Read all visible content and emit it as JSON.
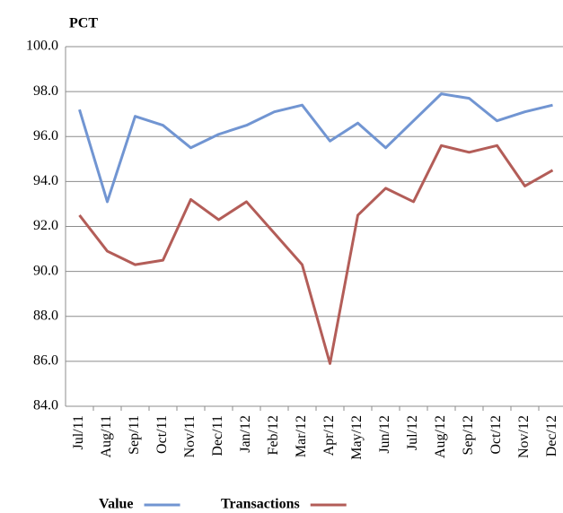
{
  "chart_data": {
    "type": "line",
    "title": "PCT",
    "categories": [
      "Jul/11",
      "Aug/11",
      "Sep/11",
      "Oct/11",
      "Nov/11",
      "Dec/11",
      "Jan/12",
      "Feb/12",
      "Mar/12",
      "Apr/12",
      "May/12",
      "Jun/12",
      "Jul/12",
      "Aug/12",
      "Sep/12",
      "Oct/12",
      "Nov/12",
      "Dec/12"
    ],
    "series": [
      {
        "name": "Value",
        "color": "#7195d2",
        "values": [
          97.2,
          93.1,
          96.9,
          96.5,
          95.5,
          96.1,
          96.5,
          97.1,
          97.4,
          95.8,
          96.6,
          95.5,
          96.7,
          97.9,
          97.7,
          96.7,
          97.1,
          97.4
        ]
      },
      {
        "name": "Transactions",
        "color": "#b35d58",
        "values": [
          92.5,
          90.9,
          90.3,
          90.5,
          93.2,
          92.3,
          93.1,
          91.7,
          90.3,
          85.9,
          92.5,
          93.7,
          93.1,
          95.6,
          95.3,
          95.6,
          93.8,
          94.5
        ]
      }
    ],
    "ylim": [
      84,
      100
    ],
    "yticks": [
      {
        "value": 84,
        "label": "84.0"
      },
      {
        "value": 86,
        "label": "86.0"
      },
      {
        "value": 88,
        "label": "88.0"
      },
      {
        "value": 90,
        "label": "90.0"
      },
      {
        "value": 92,
        "label": "92.0"
      },
      {
        "value": 94,
        "label": "94.0"
      },
      {
        "value": 96,
        "label": "96.0"
      },
      {
        "value": 98,
        "label": "98.0"
      },
      {
        "value": 100,
        "label": "100.0"
      }
    ],
    "grid": true,
    "legend": "bottom"
  }
}
